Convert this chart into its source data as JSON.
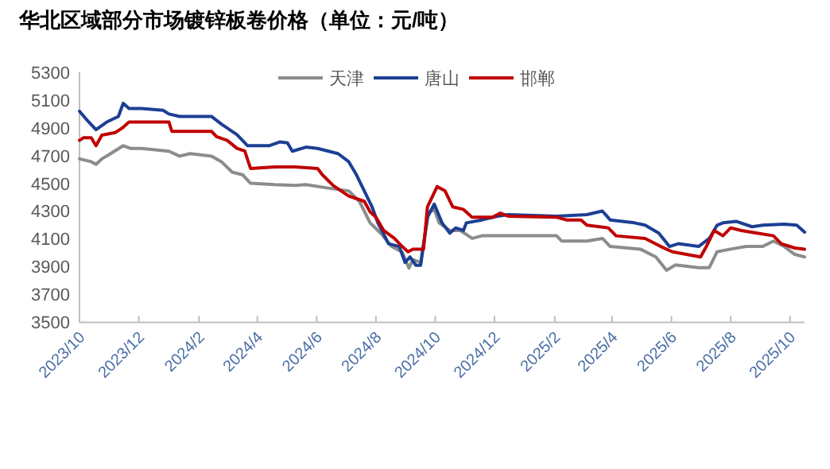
{
  "chart_data": {
    "type": "line",
    "title": "华北区域部分市场镀锌板卷价格（单位：元/吨）",
    "xlim": [
      "2023-10-01",
      "2025-10-16"
    ],
    "xticks": [
      {
        "value": "2023-10-01",
        "label": "2023/10"
      },
      {
        "value": "2023-12-01",
        "label": "2023/12"
      },
      {
        "value": "2024-02-01",
        "label": "2024/2"
      },
      {
        "value": "2024-04-01",
        "label": "2024/4"
      },
      {
        "value": "2024-06-01",
        "label": "2024/6"
      },
      {
        "value": "2024-08-01",
        "label": "2024/8"
      },
      {
        "value": "2024-10-01",
        "label": "2024/10"
      },
      {
        "value": "2024-12-01",
        "label": "2024/12"
      },
      {
        "value": "2025-02-01",
        "label": "2025/2"
      },
      {
        "value": "2025-04-01",
        "label": "2025/4"
      },
      {
        "value": "2025-06-01",
        "label": "2025/6"
      },
      {
        "value": "2025-08-01",
        "label": "2025/8"
      },
      {
        "value": "2025-10-01",
        "label": "2025/10"
      }
    ],
    "ylim": [
      3500,
      5300
    ],
    "yticks": [
      3500,
      3700,
      3900,
      4100,
      4300,
      4500,
      4700,
      4900,
      5100,
      5300
    ],
    "grid": false,
    "legend": "top",
    "marker": "none",
    "line_style": "solid",
    "series": [
      {
        "name": "天津",
        "color": "#8c8c8c",
        "x": [
          "2023-10-01",
          "2023-10-13",
          "2023-10-18",
          "2023-10-24",
          "2023-11-02",
          "2023-11-15",
          "2023-11-23",
          "2023-12-04",
          "2024-01-01",
          "2024-01-12",
          "2024-01-23",
          "2024-02-14",
          "2024-02-24",
          "2024-03-06",
          "2024-03-17",
          "2024-03-25",
          "2024-04-19",
          "2024-05-10",
          "2024-05-21",
          "2024-06-13",
          "2024-07-04",
          "2024-07-15",
          "2024-07-26",
          "2024-08-06",
          "2024-08-17",
          "2024-08-28",
          "2024-09-04",
          "2024-09-08",
          "2024-09-16",
          "2024-09-24",
          "2024-09-30",
          "2024-10-05",
          "2024-10-16",
          "2024-10-27",
          "2024-11-08",
          "2024-11-18",
          "2025-02-03",
          "2025-02-08",
          "2025-03-06",
          "2025-03-22",
          "2025-03-30",
          "2025-04-30",
          "2025-05-16",
          "2025-05-27",
          "2025-06-05",
          "2025-06-29",
          "2025-07-10",
          "2025-07-18",
          "2025-08-01",
          "2025-08-17",
          "2025-09-03",
          "2025-09-14",
          "2025-09-25",
          "2025-10-06",
          "2025-10-16"
        ],
        "values": [
          4675,
          4655,
          4636,
          4675,
          4713,
          4770,
          4750,
          4750,
          4730,
          4695,
          4713,
          4695,
          4655,
          4580,
          4560,
          4500,
          4490,
          4485,
          4490,
          4465,
          4445,
          4370,
          4215,
          4140,
          4045,
          4005,
          3890,
          3950,
          3930,
          4290,
          4312,
          4215,
          4160,
          4160,
          4103,
          4122,
          4122,
          4084,
          4084,
          4103,
          4045,
          4026,
          3970,
          3874,
          3912,
          3893,
          3893,
          4007,
          4026,
          4045,
          4045,
          4084,
          4045,
          3988,
          3970
        ]
      },
      {
        "name": "唐山",
        "color": "#1c3f94",
        "x": [
          "2023-10-01",
          "2023-10-08",
          "2023-10-18",
          "2023-10-29",
          "2023-11-10",
          "2023-11-15",
          "2023-11-21",
          "2023-12-04",
          "2023-12-26",
          "2024-01-01",
          "2024-01-12",
          "2024-02-14",
          "2024-02-24",
          "2024-03-11",
          "2024-03-22",
          "2024-04-13",
          "2024-04-24",
          "2024-05-02",
          "2024-05-07",
          "2024-05-21",
          "2024-06-02",
          "2024-06-23",
          "2024-07-04",
          "2024-07-12",
          "2024-07-20",
          "2024-07-28",
          "2024-08-03",
          "2024-08-14",
          "2024-08-25",
          "2024-08-31",
          "2024-09-05",
          "2024-09-11",
          "2024-09-16",
          "2024-09-23",
          "2024-09-30",
          "2024-10-08",
          "2024-10-16",
          "2024-10-22",
          "2024-10-30",
          "2024-11-02",
          "2024-11-18",
          "2024-12-04",
          "2024-12-15",
          "2025-02-03",
          "2025-03-06",
          "2025-03-22",
          "2025-03-30",
          "2025-04-24",
          "2025-05-05",
          "2025-05-19",
          "2025-05-30",
          "2025-06-08",
          "2025-06-29",
          "2025-07-10",
          "2025-07-18",
          "2025-07-24",
          "2025-08-07",
          "2025-08-23",
          "2025-09-03",
          "2025-09-25",
          "2025-10-08",
          "2025-10-16"
        ],
        "values": [
          5018,
          4960,
          4885,
          4940,
          4980,
          5075,
          5037,
          5037,
          5025,
          4998,
          4980,
          4980,
          4925,
          4850,
          4770,
          4770,
          4797,
          4790,
          4730,
          4760,
          4750,
          4713,
          4655,
          4560,
          4445,
          4330,
          4215,
          4065,
          4045,
          3930,
          3970,
          3910,
          3910,
          4255,
          4350,
          4215,
          4141,
          4179,
          4160,
          4215,
          4236,
          4263,
          4274,
          4263,
          4274,
          4300,
          4236,
          4215,
          4198,
          4141,
          4045,
          4065,
          4045,
          4103,
          4198,
          4215,
          4225,
          4187,
          4198,
          4206,
          4198,
          4148
        ]
      },
      {
        "name": "邯郸",
        "color": "#c00000",
        "x": [
          "2023-10-01",
          "2023-10-05",
          "2023-10-13",
          "2023-10-18",
          "2023-10-24",
          "2023-11-07",
          "2023-11-15",
          "2023-11-21",
          "2023-12-04",
          "2024-01-01",
          "2024-01-04",
          "2024-01-23",
          "2024-02-14",
          "2024-02-19",
          "2024-03-01",
          "2024-03-11",
          "2024-03-19",
          "2024-03-25",
          "2024-04-19",
          "2024-05-10",
          "2024-06-02",
          "2024-06-07",
          "2024-06-18",
          "2024-07-04",
          "2024-07-20",
          "2024-07-26",
          "2024-08-01",
          "2024-08-09",
          "2024-08-20",
          "2024-08-28",
          "2024-09-03",
          "2024-09-08",
          "2024-09-19",
          "2024-09-23",
          "2024-10-03",
          "2024-10-11",
          "2024-10-19",
          "2024-10-30",
          "2024-11-08",
          "2024-11-29",
          "2024-12-07",
          "2024-12-15",
          "2025-02-03",
          "2025-02-13",
          "2025-02-28",
          "2025-03-06",
          "2025-03-28",
          "2025-04-05",
          "2025-05-05",
          "2025-05-21",
          "2025-06-02",
          "2025-07-01",
          "2025-07-07",
          "2025-07-15",
          "2025-07-24",
          "2025-08-01",
          "2025-08-12",
          "2025-08-28",
          "2025-09-14",
          "2025-09-22",
          "2025-10-06",
          "2025-10-16"
        ],
        "values": [
          4808,
          4827,
          4827,
          4770,
          4846,
          4865,
          4903,
          4941,
          4941,
          4941,
          4873,
          4873,
          4873,
          4835,
          4808,
          4751,
          4732,
          4606,
          4617,
          4617,
          4606,
          4560,
          4484,
          4408,
          4370,
          4294,
          4255,
          4160,
          4103,
          4045,
          4007,
          4026,
          4026,
          4330,
          4476,
          4446,
          4330,
          4312,
          4255,
          4255,
          4285,
          4263,
          4255,
          4236,
          4236,
          4198,
          4179,
          4122,
          4103,
          4045,
          4007,
          3970,
          4045,
          4160,
          4122,
          4179,
          4160,
          4141,
          4122,
          4065,
          4034,
          4026
        ]
      }
    ]
  }
}
